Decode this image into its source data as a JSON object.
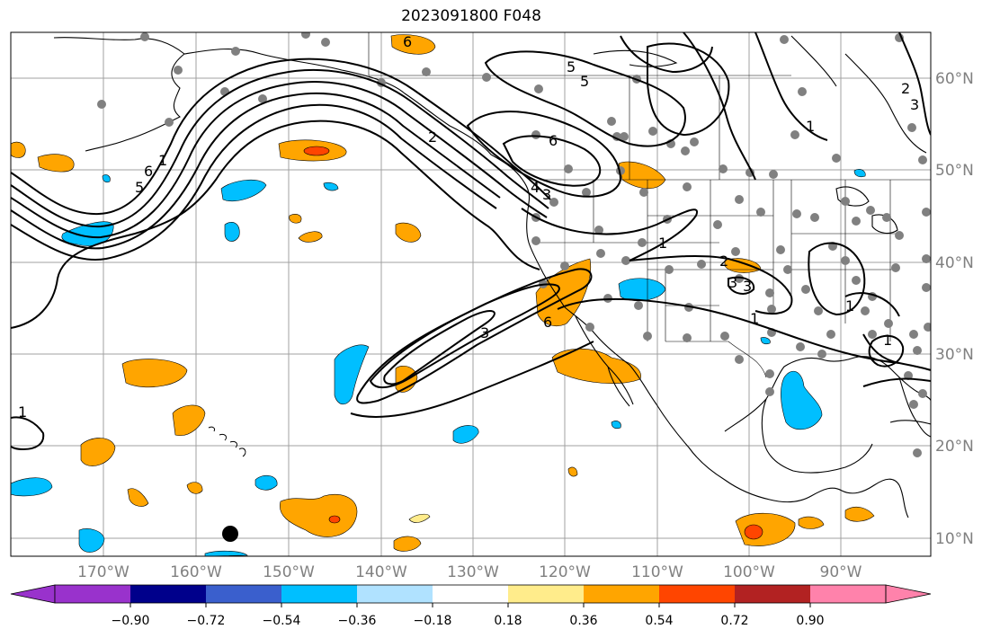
{
  "title": "2023091800 F048",
  "lon_labels": [
    "170°W",
    "160°W",
    "150°W",
    "140°W",
    "130°W",
    "120°W",
    "110°W",
    "100°W",
    "90°W"
  ],
  "lat_labels": [
    "60°N",
    "50°N",
    "40°N",
    "30°N",
    "20°N",
    "10°N"
  ],
  "contour_labels": [
    "6",
    "5",
    "1",
    "6",
    "5",
    "6",
    "1",
    "3",
    "4",
    "3",
    "6",
    "2",
    "5",
    "1",
    "2",
    "3",
    "3",
    "1",
    "1",
    "1",
    "3",
    "2",
    "1"
  ],
  "colorbar": {
    "tick_labels": [
      "−0.90",
      "−0.72",
      "−0.54",
      "−0.36",
      "−0.18",
      "0.18",
      "0.36",
      "0.54",
      "0.72",
      "0.90"
    ],
    "colors": [
      "#9932cc",
      "#00008b",
      "#3a5fcd",
      "#00bfff",
      "#b0e2ff",
      "#ffffff",
      "#ffec8b",
      "#ffa500",
      "#ff4500",
      "#b22222",
      "#ff82ab"
    ]
  }
}
